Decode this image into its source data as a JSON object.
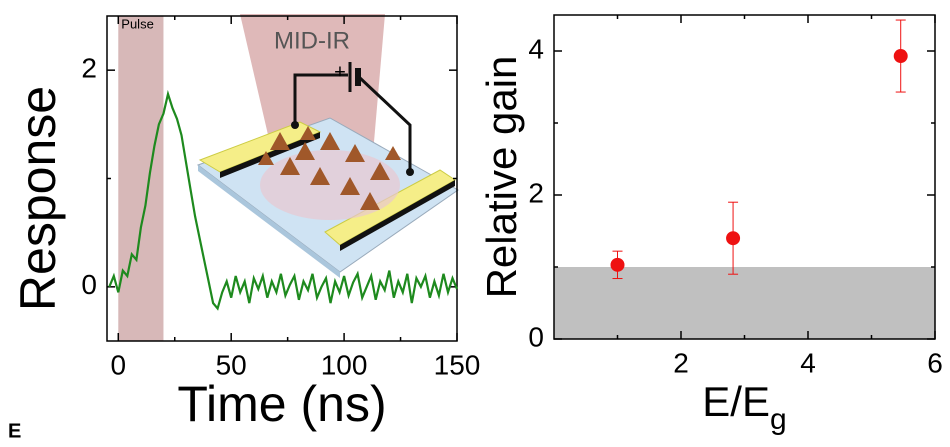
{
  "figure_label": "E",
  "chart_data": [
    {
      "type": "line",
      "xlabel": "Time (ns)",
      "ylabel": "Response",
      "xlim": [
        -5,
        150
      ],
      "ylim": [
        -0.5,
        2.5
      ],
      "xticks": [
        0,
        50,
        100,
        150
      ],
      "yticks": [
        0,
        2
      ],
      "minor_xticks": [
        25,
        75,
        125
      ],
      "minor_yticks": [
        1
      ],
      "shaded_x": {
        "range": [
          0,
          20
        ],
        "label": "Pulse",
        "color": "#c9a0a0"
      },
      "inset": {
        "label": "MID-IR",
        "polarity": "+"
      },
      "x": [
        -4,
        -2,
        0,
        2,
        4,
        6,
        8,
        10,
        12,
        14,
        16,
        18,
        20,
        22,
        24,
        26,
        28,
        30,
        32,
        34,
        36,
        38,
        40,
        42,
        44,
        46,
        48,
        50,
        52,
        54,
        56,
        58,
        60,
        62,
        64,
        66,
        68,
        70,
        72,
        74,
        76,
        78,
        80,
        82,
        84,
        86,
        88,
        90,
        92,
        94,
        96,
        98,
        100,
        102,
        104,
        106,
        108,
        110,
        112,
        114,
        116,
        118,
        120,
        122,
        124,
        126,
        128,
        130,
        132,
        134,
        136,
        138,
        140,
        142,
        144,
        146,
        148,
        150
      ],
      "series": [
        {
          "color": "#1e8a1e",
          "values": [
            0.0,
            0.1,
            -0.05,
            0.15,
            0.1,
            0.3,
            0.25,
            0.55,
            0.75,
            1.05,
            1.3,
            1.5,
            1.6,
            1.78,
            1.65,
            1.55,
            1.4,
            1.15,
            0.9,
            0.65,
            0.45,
            0.25,
            0.05,
            -0.15,
            -0.2,
            -0.05,
            0.05,
            -0.1,
            0.1,
            -0.05,
            0.05,
            -0.15,
            0.08,
            -0.02,
            0.1,
            -0.1,
            0.05,
            -0.05,
            0.12,
            -0.08,
            0.02,
            0.1,
            -0.12,
            0.05,
            -0.03,
            0.12,
            -0.1,
            0.0,
            0.08,
            -0.15,
            0.05,
            -0.05,
            0.1,
            -0.08,
            0.04,
            0.12,
            -0.1,
            0.0,
            0.1,
            -0.12,
            0.05,
            -0.03,
            0.15,
            -0.1,
            0.05,
            -0.05,
            0.12,
            -0.15,
            0.08,
            0.0,
            0.1,
            -0.1,
            0.05,
            -0.08,
            0.12,
            -0.05,
            0.08,
            -0.02
          ]
        }
      ]
    },
    {
      "type": "scatter",
      "xlabel": "E/E",
      "xlabel_subscript": "g",
      "ylabel": "Relative gain",
      "xlim": [
        0,
        6
      ],
      "ylim": [
        0,
        4.5
      ],
      "xticks": [
        2,
        4,
        6
      ],
      "yticks": [
        0,
        2,
        4
      ],
      "minor_xticks": [
        1,
        3,
        5
      ],
      "minor_yticks": [
        1,
        3
      ],
      "shaded_y": {
        "range": [
          0,
          1
        ],
        "color": "#c0c0c0"
      },
      "x": [
        1.0,
        2.82,
        5.46
      ],
      "series": [
        {
          "color": "#ee1111",
          "values": [
            1.03,
            1.4,
            3.93
          ],
          "errors": [
            0.19,
            0.5,
            0.5
          ]
        }
      ]
    }
  ]
}
